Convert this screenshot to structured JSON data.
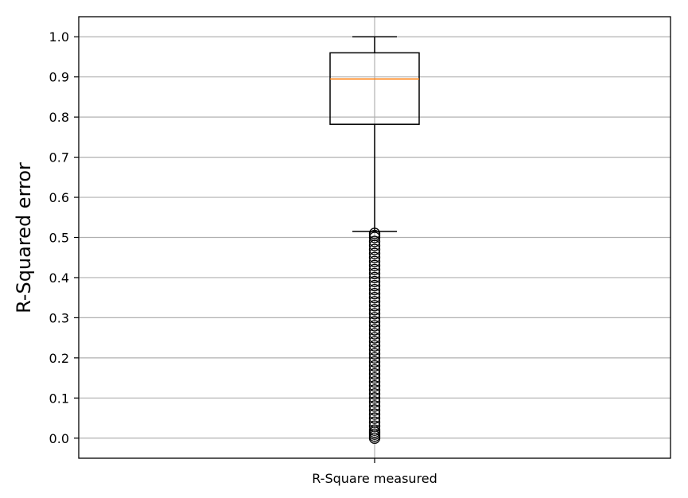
{
  "chart_data": {
    "type": "box",
    "title": "",
    "xlabel": "",
    "ylabel": "R-Squared error",
    "categories": [
      "R-Square measured"
    ],
    "ylim": [
      -0.05,
      1.05
    ],
    "yticks": [
      0.0,
      0.1,
      0.2,
      0.3,
      0.4,
      0.5,
      0.6,
      0.7,
      0.8,
      0.9,
      1.0
    ],
    "ytick_labels": [
      "0.0",
      "0.1",
      "0.2",
      "0.3",
      "0.4",
      "0.5",
      "0.6",
      "0.7",
      "0.8",
      "0.9",
      "1.0"
    ],
    "grid": true,
    "box": {
      "whisker_low": 0.515,
      "q1": 0.782,
      "median": 0.895,
      "q3": 0.96,
      "whisker_high": 1.0
    },
    "outliers": [
      0.0,
      0.005,
      0.01,
      0.015,
      0.02,
      0.03,
      0.04,
      0.05,
      0.06,
      0.07,
      0.08,
      0.09,
      0.1,
      0.11,
      0.12,
      0.13,
      0.14,
      0.15,
      0.16,
      0.17,
      0.18,
      0.19,
      0.2,
      0.21,
      0.22,
      0.23,
      0.24,
      0.25,
      0.26,
      0.27,
      0.28,
      0.29,
      0.3,
      0.31,
      0.32,
      0.33,
      0.34,
      0.35,
      0.36,
      0.37,
      0.38,
      0.39,
      0.4,
      0.41,
      0.42,
      0.43,
      0.44,
      0.45,
      0.46,
      0.47,
      0.48,
      0.49,
      0.5,
      0.505,
      0.51
    ],
    "colors": {
      "median": "#ff7f0e",
      "box": "#000000",
      "grid": "#b0b0b0"
    }
  }
}
